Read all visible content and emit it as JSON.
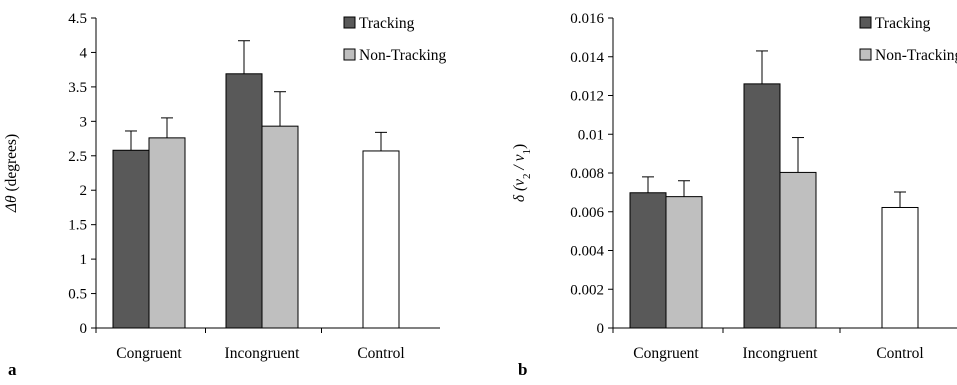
{
  "chart_data": [
    {
      "type": "bar",
      "panel_label": "a",
      "ylabel_parts": [
        "Δθ",
        " (degrees)"
      ],
      "ylim": [
        0,
        4.5
      ],
      "yticks": [
        0,
        0.5,
        1,
        1.5,
        2,
        2.5,
        3,
        3.5,
        4,
        4.5
      ],
      "ytick_labels": [
        "0",
        "0.5",
        "1",
        "1.5",
        "2",
        "2.5",
        "3",
        "3.5",
        "4",
        "4.5"
      ],
      "categories": [
        "Congruent",
        "Incongruent",
        "Control"
      ],
      "series": [
        {
          "name": "Tracking",
          "color": "#595959",
          "values": [
            2.58,
            3.69,
            null
          ],
          "errors": [
            0.28,
            0.48,
            null
          ]
        },
        {
          "name": "Non-Tracking",
          "color": "#bfbfbf",
          "values": [
            2.76,
            2.93,
            null
          ],
          "errors": [
            0.29,
            0.5,
            null
          ]
        },
        {
          "name": "",
          "color": "#ffffff",
          "values": [
            null,
            null,
            2.57
          ],
          "errors": [
            null,
            null,
            0.27
          ]
        }
      ],
      "legend_position": "top-right",
      "grid": false
    },
    {
      "type": "bar",
      "panel_label": "b",
      "ylabel_parts": [
        "δ",
        " (v",
        "2",
        " / v",
        "1",
        ")"
      ],
      "ylim": [
        0,
        0.016
      ],
      "yticks": [
        0,
        0.002,
        0.004,
        0.006,
        0.008,
        0.01,
        0.012,
        0.014,
        0.016
      ],
      "ytick_labels": [
        "0",
        "0.002",
        "0.004",
        "0.006",
        "0.008",
        "0.01",
        "0.012",
        "0.014",
        "0.016"
      ],
      "categories": [
        "Congruent",
        "Incongruent",
        "Control"
      ],
      "series": [
        {
          "name": "Tracking",
          "color": "#595959",
          "values": [
            0.00698,
            0.0126,
            null
          ],
          "errors": [
            0.00082,
            0.0017,
            null
          ]
        },
        {
          "name": "Non-Tracking",
          "color": "#bfbfbf",
          "values": [
            0.00678,
            0.00803,
            null
          ],
          "errors": [
            0.00082,
            0.0018,
            null
          ]
        },
        {
          "name": "",
          "color": "#ffffff",
          "values": [
            null,
            null,
            0.00622
          ],
          "errors": [
            null,
            null,
            0.0008
          ]
        }
      ],
      "legend_position": "top-right",
      "grid": false
    }
  ]
}
